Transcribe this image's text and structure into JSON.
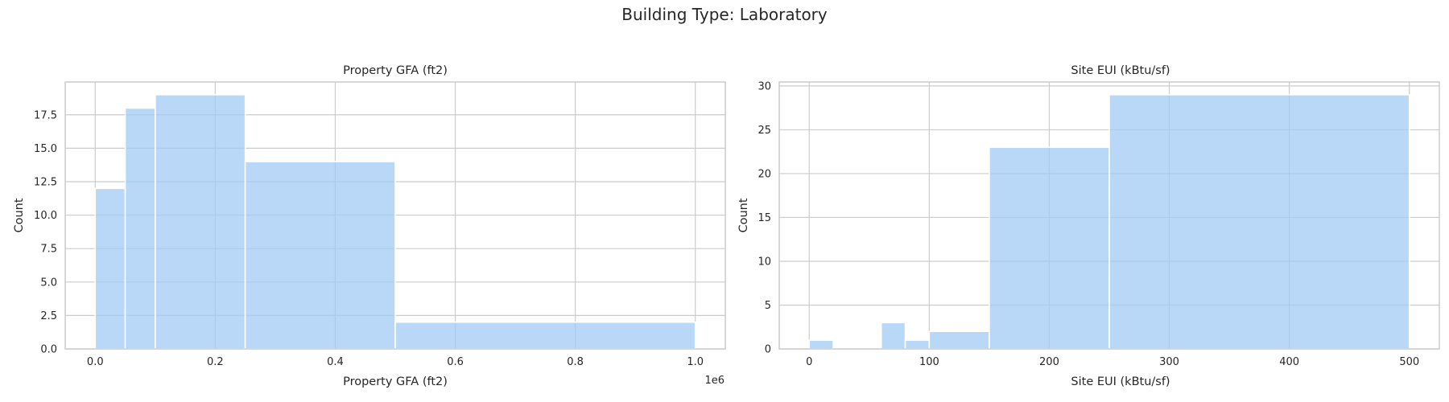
{
  "figure": {
    "title": "Building Type: Laboratory"
  },
  "chart_data": [
    {
      "type": "bar",
      "title": "Property GFA (ft2)",
      "xlabel": "Property GFA (ft2)",
      "ylabel": "Count",
      "x_offset_label": "1e6",
      "xlim": [
        -0.05,
        1.05
      ],
      "ylim": [
        0,
        19.95
      ],
      "xticks": [
        0.0,
        0.2,
        0.4,
        0.6,
        0.8,
        1.0
      ],
      "xtick_labels": [
        "0.0",
        "0.2",
        "0.4",
        "0.6",
        "0.8",
        "1.0"
      ],
      "yticks": [
        0,
        2.5,
        5,
        7.5,
        10,
        12.5,
        15,
        17.5
      ],
      "ytick_labels": [
        "0.0",
        "2.5",
        "5.0",
        "7.5",
        "10.0",
        "12.5",
        "15.0",
        "17.5"
      ],
      "grid": true,
      "bins": [
        {
          "x0": 0.0,
          "x1": 0.05,
          "count": 12
        },
        {
          "x0": 0.05,
          "x1": 0.1,
          "count": 18
        },
        {
          "x0": 0.1,
          "x1": 0.25,
          "count": 19
        },
        {
          "x0": 0.25,
          "x1": 0.5,
          "count": 14
        },
        {
          "x0": 0.5,
          "x1": 1.0,
          "count": 2
        }
      ],
      "color": "#a1c9f4"
    },
    {
      "type": "bar",
      "title": "Site EUI (kBtu/sf)",
      "xlabel": "Site EUI (kBtu/sf)",
      "ylabel": "Count",
      "xlim": [
        -25,
        525
      ],
      "ylim": [
        0,
        30.45
      ],
      "xticks": [
        0,
        100,
        200,
        300,
        400,
        500
      ],
      "xtick_labels": [
        "0",
        "100",
        "200",
        "300",
        "400",
        "500"
      ],
      "yticks": [
        0,
        5,
        10,
        15,
        20,
        25,
        30
      ],
      "ytick_labels": [
        "0",
        "5",
        "10",
        "15",
        "20",
        "25",
        "30"
      ],
      "grid": true,
      "bins": [
        {
          "x0": 0,
          "x1": 20,
          "count": 1
        },
        {
          "x0": 20,
          "x1": 60,
          "count": 0
        },
        {
          "x0": 60,
          "x1": 80,
          "count": 3
        },
        {
          "x0": 80,
          "x1": 100,
          "count": 1
        },
        {
          "x0": 100,
          "x1": 150,
          "count": 2
        },
        {
          "x0": 150,
          "x1": 250,
          "count": 23
        },
        {
          "x0": 250,
          "x1": 500,
          "count": 29
        }
      ],
      "color": "#a1c9f4"
    }
  ]
}
